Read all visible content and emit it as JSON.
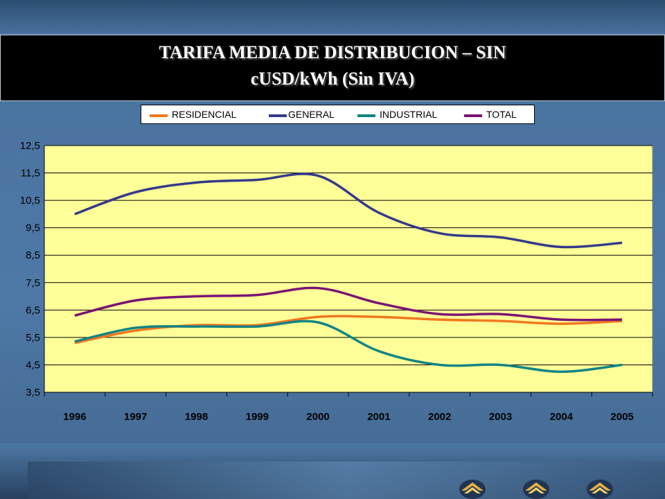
{
  "title": {
    "line1": "TARIFA MEDIA DE DISTRIBUCION – SIN",
    "line2": "cUSD/kWh (Sin IVA)"
  },
  "chart_data": {
    "type": "line",
    "x": [
      "1996",
      "1997",
      "1998",
      "1999",
      "2000",
      "2001",
      "2002",
      "2003",
      "2004",
      "2005"
    ],
    "ylim": [
      3.5,
      12.5
    ],
    "yticks": [
      "12,5",
      "11,5",
      "10,5",
      "9,5",
      "8,5",
      "7,5",
      "6,5",
      "5,5",
      "4,5",
      "3,5"
    ],
    "ytick_values": [
      12.5,
      11.5,
      10.5,
      9.5,
      8.5,
      7.5,
      6.5,
      5.5,
      4.5,
      3.5
    ],
    "grid": true,
    "legend_position": "top",
    "plot_background": "#ffff99",
    "series": [
      {
        "name": "RESIDENCIAL",
        "color": "#f07820",
        "values": [
          5.3,
          5.75,
          5.95,
          5.95,
          6.25,
          6.25,
          6.15,
          6.1,
          6.0,
          6.1
        ]
      },
      {
        "name": "GENERAL",
        "color": "#343a8a",
        "values": [
          10.0,
          10.8,
          11.15,
          11.25,
          11.4,
          10.05,
          9.3,
          9.15,
          8.8,
          8.95
        ]
      },
      {
        "name": "INDUSTRIAL",
        "color": "#128484",
        "values": [
          5.35,
          5.85,
          5.9,
          5.9,
          6.05,
          5.0,
          4.5,
          4.5,
          4.25,
          4.5
        ]
      },
      {
        "name": "TOTAL",
        "color": "#7a1474",
        "values": [
          6.3,
          6.85,
          7.0,
          7.05,
          7.3,
          6.75,
          6.35,
          6.35,
          6.15,
          6.15
        ]
      }
    ]
  }
}
